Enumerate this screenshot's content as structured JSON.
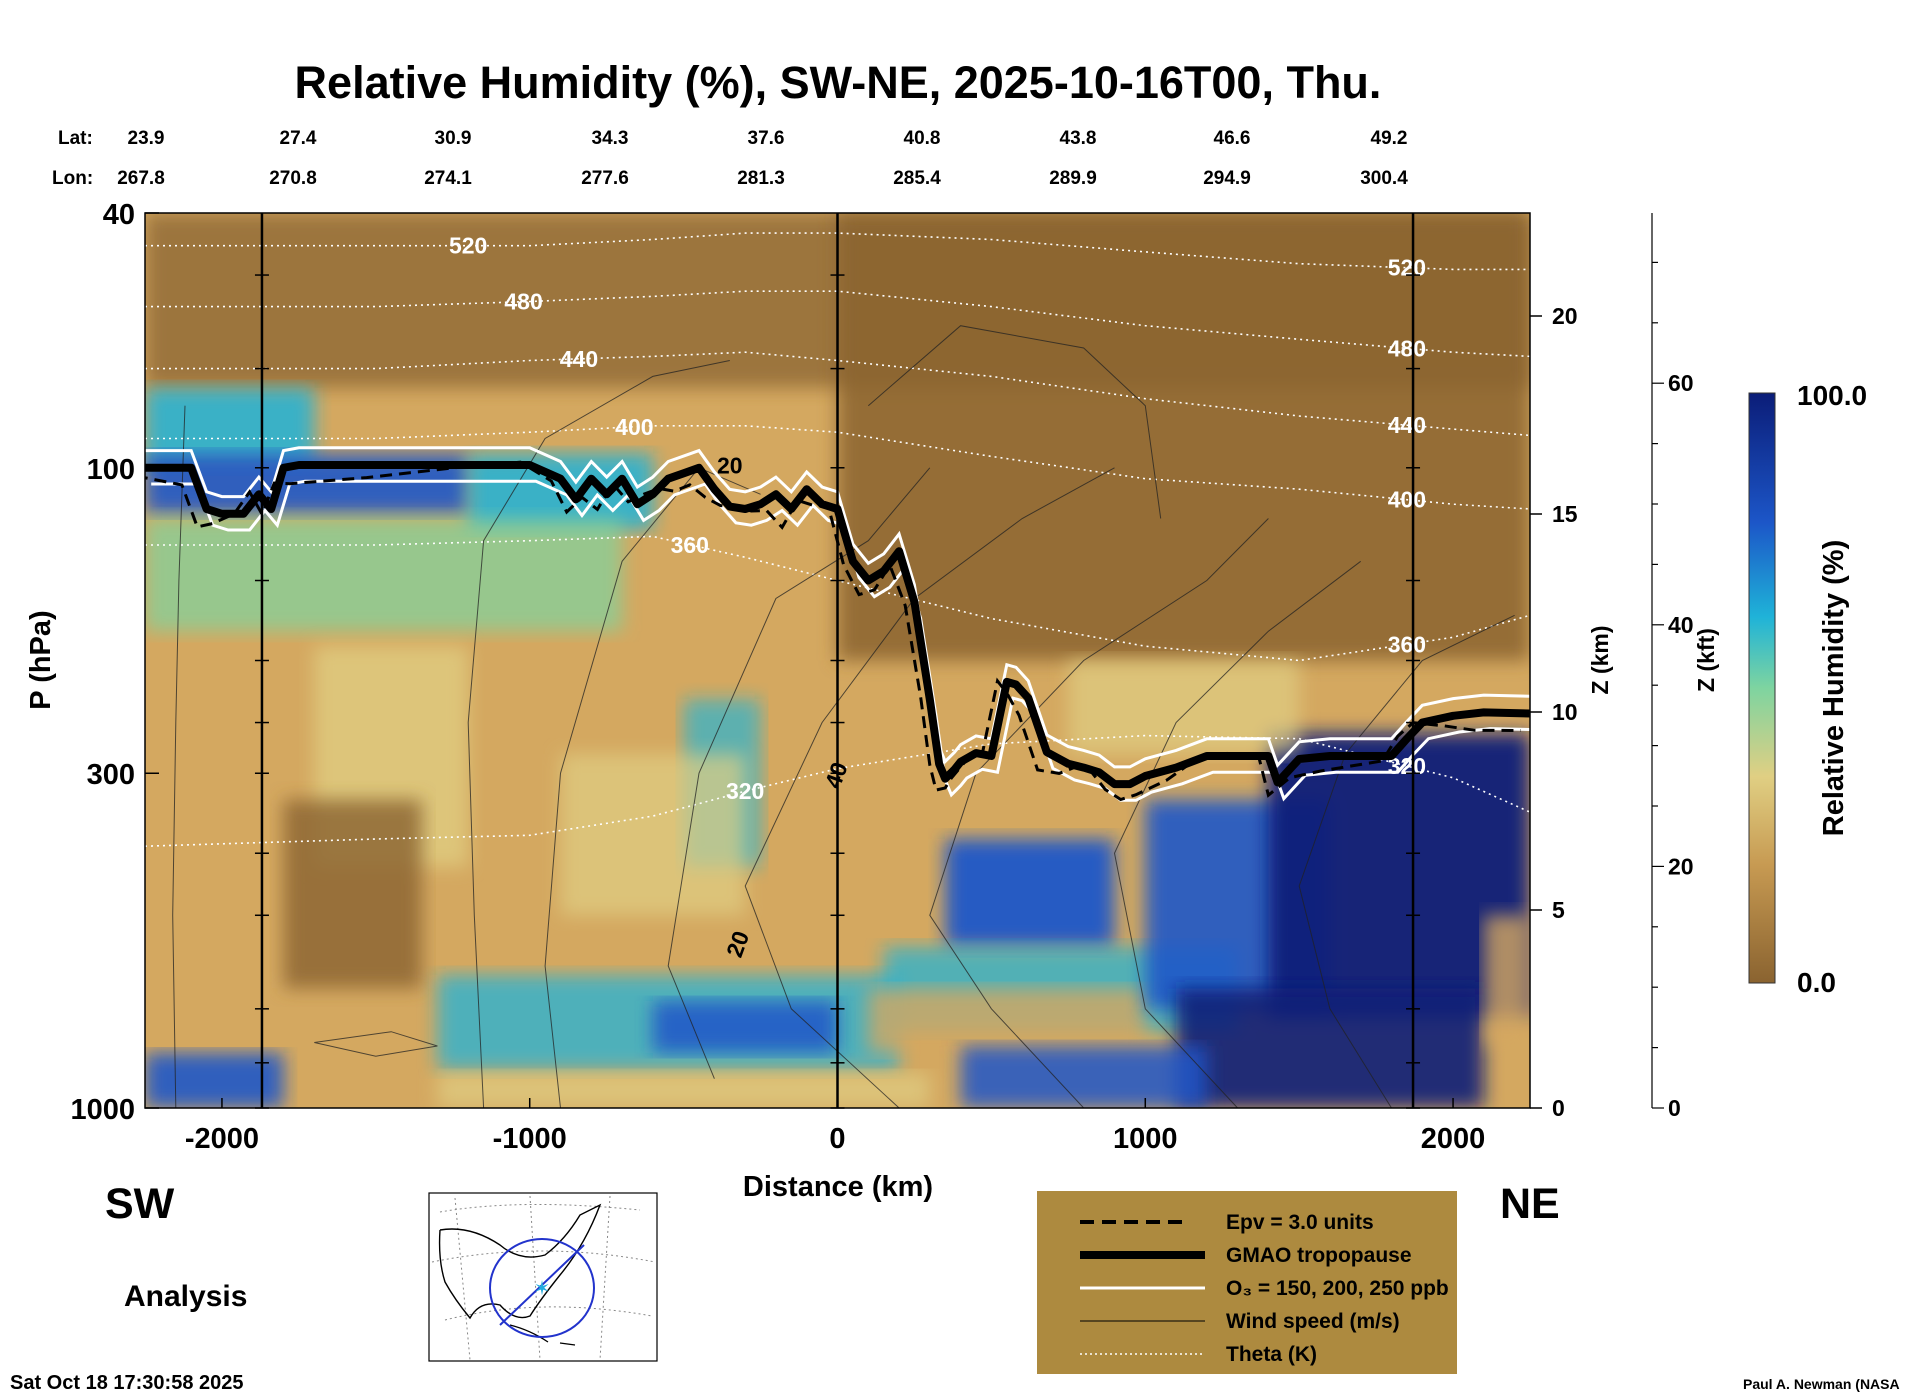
{
  "chart_data": {
    "type": "heatmap",
    "title": "Relative Humidity (%), SW-NE, 2025-10-16T00, Thu.",
    "xlabel": "Distance (km)",
    "ylabel": "P (hPa)",
    "y2label": "Z (km)",
    "y3label": "Z (kft)",
    "colorbar_label": "Relative Humidity (%)",
    "colorbar_max": "100.0",
    "colorbar_min": "0.0",
    "xlim": [
      -2250,
      2250
    ],
    "ylim": [
      1000,
      40
    ],
    "y_scale": "log",
    "x_ticks": [
      -2000,
      -1000,
      0,
      1000,
      2000
    ],
    "x_tick_labels": [
      "-2000",
      "-1000",
      "0",
      "1000",
      "2000"
    ],
    "p_ticks": [
      1000,
      300,
      100,
      40
    ],
    "p_tick_labels": [
      "1000",
      "300",
      "100",
      "40"
    ],
    "z_km_ticks": [
      0,
      5,
      10,
      15,
      20
    ],
    "z_km_tick_labels": [
      "0",
      "5",
      "10",
      "15",
      "20"
    ],
    "z_kft_ticks": [
      0,
      20,
      40,
      60
    ],
    "z_kft_tick_labels": [
      "0",
      "20",
      "40",
      "60"
    ],
    "lat_label": "Lat:",
    "lon_label": "Lon:",
    "lat_values": [
      "23.9",
      "27.4",
      "30.9",
      "34.3",
      "37.6",
      "40.8",
      "43.8",
      "46.6",
      "49.2"
    ],
    "lon_values": [
      "267.8",
      "270.8",
      "274.1",
      "277.6",
      "281.3",
      "285.4",
      "289.9",
      "294.9",
      "300.4"
    ],
    "ref_lines_km": [
      -1870,
      0,
      1870
    ],
    "tropopause_gmao": {
      "x": [
        -2250,
        -2100,
        -2050,
        -2000,
        -1930,
        -1880,
        -1840,
        -1800,
        -1750,
        -1500,
        -1200,
        -1000,
        -900,
        -850,
        -800,
        -750,
        -700,
        -650,
        -600,
        -550,
        -500,
        -450,
        -400,
        -350,
        -300,
        -250,
        -200,
        -150,
        -100,
        -50,
        0,
        50,
        100,
        150,
        200,
        250,
        300,
        330,
        350,
        380,
        400,
        450,
        500,
        550,
        580,
        620,
        680,
        750,
        800,
        850,
        900,
        950,
        1000,
        1100,
        1200,
        1300,
        1400,
        1430,
        1500,
        1600,
        1800,
        1850,
        1900,
        2000,
        2100,
        2250
      ],
      "p": [
        100,
        100,
        116,
        118,
        118,
        110,
        116,
        100,
        99,
        99,
        99,
        99,
        104,
        112,
        104,
        110,
        104,
        114,
        110,
        104,
        102,
        100,
        108,
        115,
        116,
        114,
        110,
        116,
        108,
        114,
        116,
        140,
        150,
        145,
        135,
        162,
        230,
        290,
        306,
        296,
        288,
        279,
        282,
        216,
        218,
        229,
        278,
        290,
        294,
        299,
        312,
        312,
        303,
        294,
        282,
        282,
        282,
        310,
        285,
        282,
        282,
        265,
        250,
        244,
        241,
        242
      ]
    },
    "theta_contours": [
      {
        "label": "320",
        "values_km": [
          -2250,
          -1500,
          -1000,
          -600,
          -300,
          0,
          500,
          1000,
          1500,
          2000,
          2250
        ],
        "values_p": [
          390,
          380,
          375,
          350,
          320,
          295,
          270,
          262,
          265,
          305,
          345
        ]
      },
      {
        "label": "360",
        "values_km": [
          -2250,
          -1500,
          -1000,
          -600,
          -300,
          0,
          500,
          1000,
          1500,
          2000,
          2250
        ],
        "values_p": [
          132,
          132,
          130,
          128,
          138,
          150,
          172,
          190,
          200,
          184,
          170
        ]
      },
      {
        "label": "400",
        "values_km": [
          -2250,
          -1500,
          -1000,
          -600,
          -300,
          0,
          500,
          1000,
          1500,
          2000,
          2250
        ],
        "values_p": [
          90,
          90,
          88,
          86,
          86,
          88,
          96,
          104,
          108,
          114,
          116
        ]
      },
      {
        "label": "440",
        "values_km": [
          -2250,
          -1500,
          -1000,
          -600,
          -300,
          0,
          500,
          1000,
          1500,
          2000,
          2250
        ],
        "values_p": [
          70,
          70,
          68,
          67,
          66,
          68,
          72,
          78,
          83,
          87,
          89
        ]
      },
      {
        "label": "480",
        "values_km": [
          -2250,
          -1500,
          -1000,
          -600,
          -300,
          0,
          500,
          1000,
          1500,
          2000,
          2250
        ],
        "values_p": [
          56,
          56,
          55,
          54,
          53,
          53,
          56,
          60,
          63,
          66,
          67
        ]
      },
      {
        "label": "520",
        "values_km": [
          -2250,
          -1500,
          -1000,
          -600,
          -300,
          0,
          500,
          1000,
          1500,
          2000,
          2250
        ],
        "values_p": [
          45,
          45,
          45,
          44,
          43,
          43,
          44,
          46,
          48,
          49,
          49
        ]
      }
    ],
    "wind_labels": [
      "20",
      "40",
      "20"
    ],
    "direction_left": "SW",
    "direction_right": "NE",
    "analysis_label": "Analysis",
    "legend": [
      "Epv = 3.0 units",
      "GMAO tropopause",
      "O₃ = 150, 200, 250 ppb",
      "Wind speed (m/s)",
      "Theta (K)"
    ],
    "footer_left": "Sat Oct 18 17:30:58 2025",
    "footer_right": "Paul A. Newman (NASA",
    "colors": {
      "rh_dry": "#8a6330",
      "rh_tan": "#d4a860",
      "rh_yellow": "#e0cf83",
      "rh_green": "#7ed4a0",
      "rh_cyan": "#1fb3d8",
      "rh_blue": "#1c56c8",
      "rh_wet": "#0b1d78",
      "legend_bg": "#ad8a3f"
    }
  }
}
